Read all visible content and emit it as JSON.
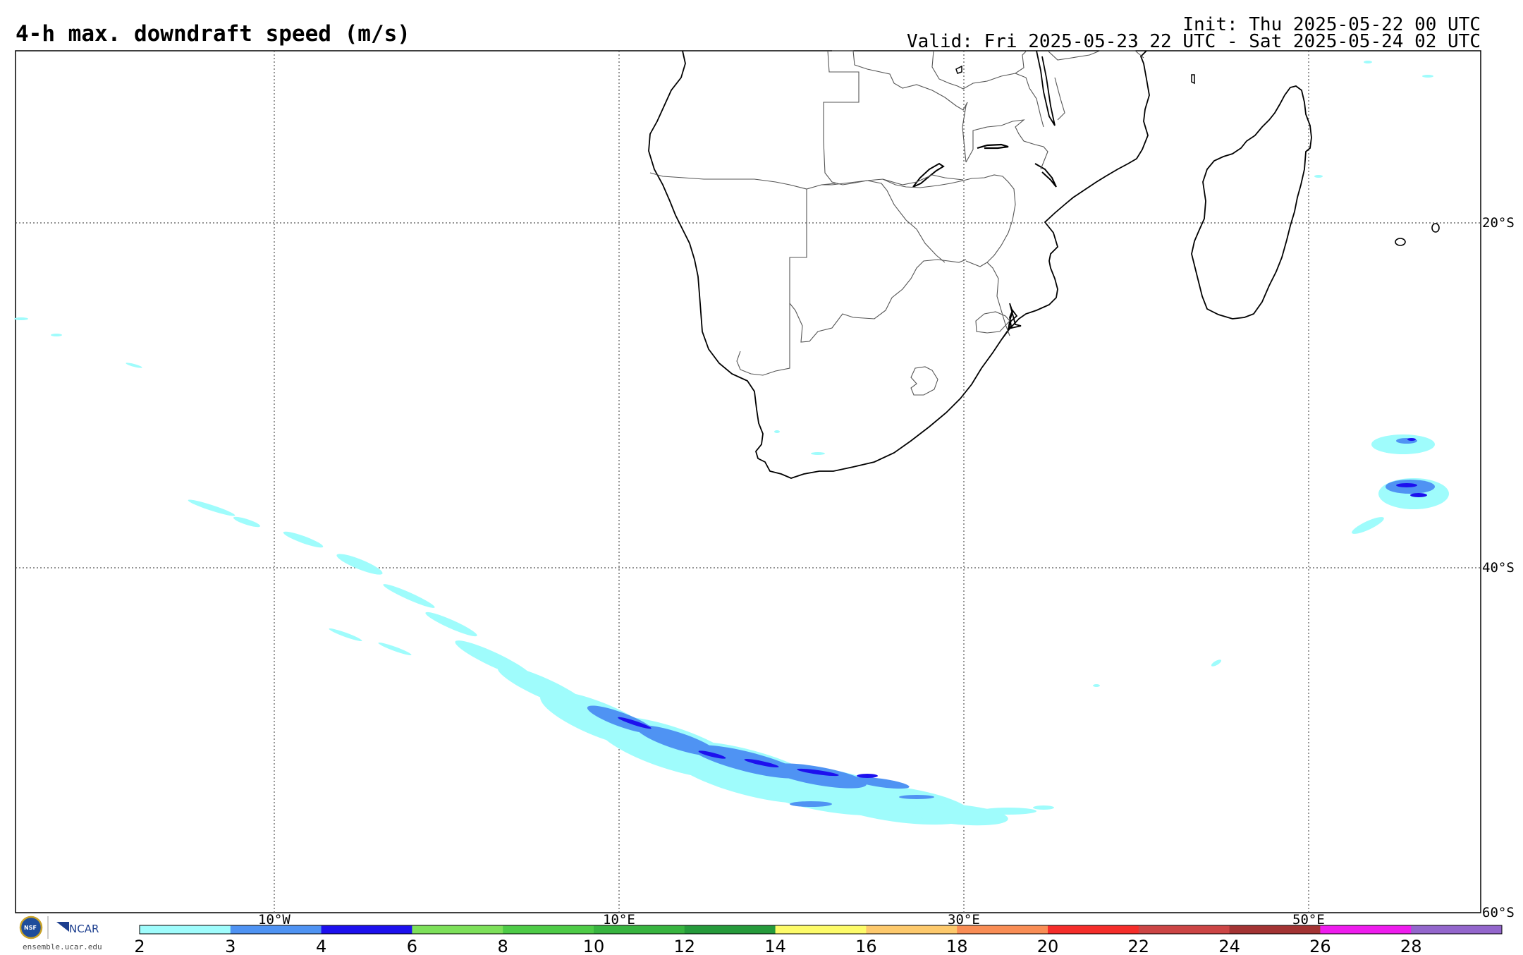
{
  "header": {
    "title": "4-h max. downdraft speed (m/s)",
    "init": "Init: Thu 2025-05-22 00 UTC",
    "valid": "Valid: Fri 2025-05-23 22 UTC - Sat 2025-05-24 02 UTC"
  },
  "map": {
    "projection": "cylindrical",
    "region": "Southern Africa and South Atlantic / Indian Ocean",
    "lon_range": [
      -25,
      60
    ],
    "lat_range": [
      -60,
      -10
    ],
    "gridlines": "dotted",
    "lat_labels": [
      "20°S",
      "40°S",
      "60°S"
    ],
    "lon_labels": [
      "10°W",
      "10°E",
      "30°E",
      "50°E"
    ],
    "coastline_color": "#000000",
    "border_color": "#555555"
  },
  "features": [
    {
      "name": "south-atlantic-downdraft-band",
      "description": "elongated band of 2–6 m/s values stretching from about 30°S 15°W to 48°S 35°E"
    },
    {
      "name": "east-of-madagascar-cluster",
      "description": "compact area of 2–6 m/s values near 35°S 58°E"
    }
  ],
  "colorbar": {
    "ticks": [
      "2",
      "3",
      "4",
      "6",
      "8",
      "10",
      "12",
      "14",
      "16",
      "18",
      "20",
      "22",
      "24",
      "26",
      "28"
    ],
    "colors": [
      "#9ffcfc",
      "#4f93f3",
      "#1d10ee",
      "#7de05a",
      "#4ecb47",
      "#38b440",
      "#259a3b",
      "#fdfb69",
      "#fdc96c",
      "#f98d55",
      "#f52d2a",
      "#cc4545",
      "#a33333",
      "#ee1ced",
      "#9366cc"
    ]
  },
  "branding": {
    "nsf": "NSF",
    "ncar": "NCAR",
    "url": "ensemble.ucar.edu"
  }
}
